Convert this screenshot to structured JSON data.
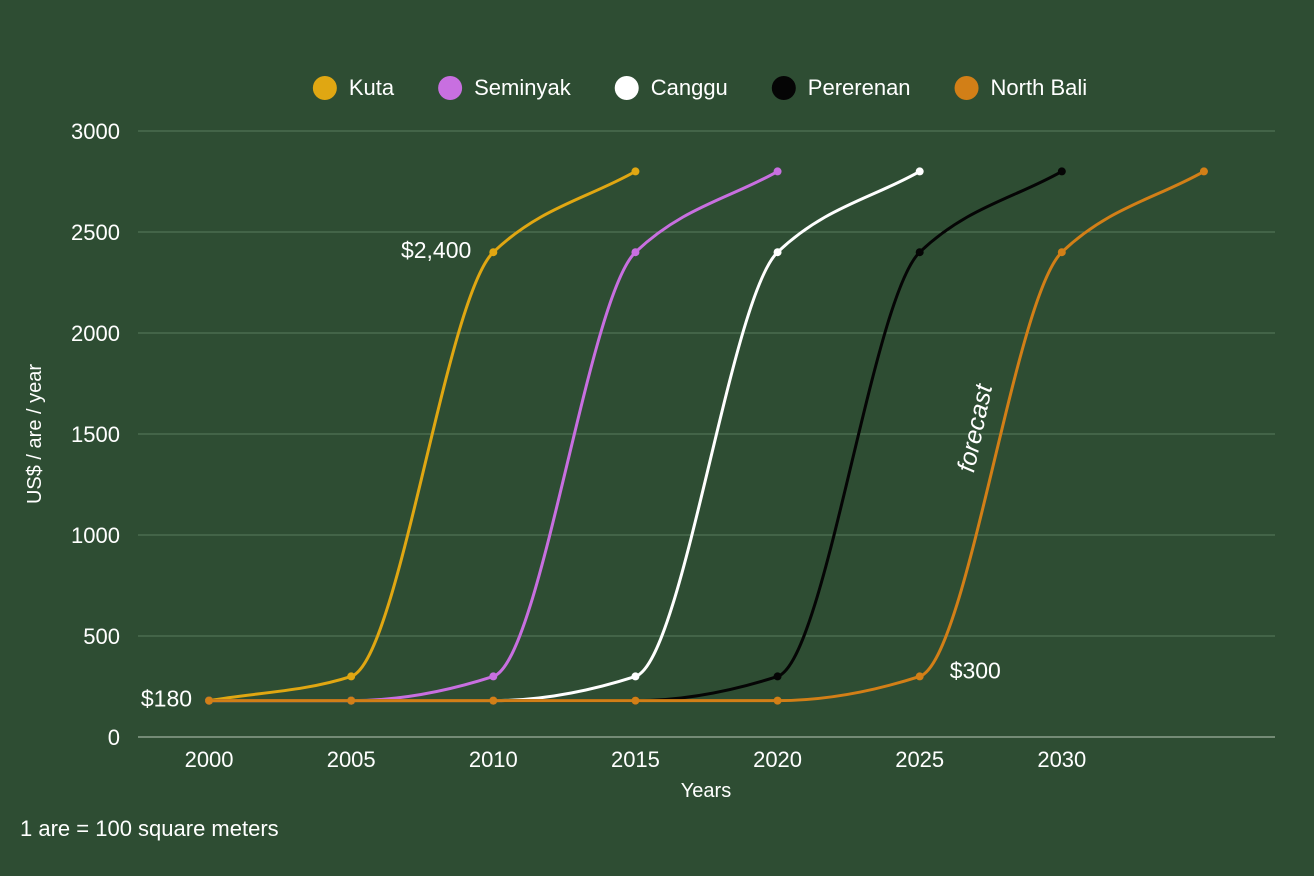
{
  "chart_data": {
    "type": "line",
    "title": "",
    "xlabel": "Years",
    "ylabel": "US$ / are / year",
    "xlim": [
      1997.5,
      2037.5
    ],
    "ylim": [
      0,
      3000
    ],
    "xticks": [
      2000,
      2005,
      2010,
      2015,
      2020,
      2025,
      2030
    ],
    "yticks": [
      0,
      500,
      1000,
      1500,
      2000,
      2500,
      3000
    ],
    "grid": true,
    "legend_position": "top-center",
    "series": [
      {
        "name": "Kuta",
        "color": "#e0a712",
        "x": [
          2000,
          2005,
          2010,
          2015
        ],
        "y": [
          180,
          300,
          2400,
          2800
        ]
      },
      {
        "name": "Seminyak",
        "color": "#c86fe0",
        "x": [
          2000,
          2005,
          2010,
          2015,
          2020
        ],
        "y": [
          180,
          180,
          300,
          2400,
          2800
        ]
      },
      {
        "name": "Canggu",
        "color": "#ffffff",
        "x": [
          2000,
          2005,
          2010,
          2015,
          2020,
          2025
        ],
        "y": [
          180,
          180,
          180,
          300,
          2400,
          2800
        ]
      },
      {
        "name": "Pererenan",
        "color": "#050505",
        "x": [
          2000,
          2005,
          2010,
          2015,
          2020,
          2025,
          2030
        ],
        "y": [
          180,
          180,
          180,
          180,
          300,
          2400,
          2800
        ]
      },
      {
        "name": "North Bali",
        "color": "#d27f17",
        "x": [
          2000,
          2005,
          2010,
          2015,
          2020,
          2025,
          2030,
          2035
        ],
        "y": [
          180,
          180,
          180,
          180,
          180,
          300,
          2400,
          2800
        ]
      }
    ],
    "annotations": [
      {
        "text": "$180",
        "x": 2000,
        "y": 180
      },
      {
        "text": "$2,400",
        "x": 2010,
        "y": 2400
      },
      {
        "text": "$300",
        "x": 2025,
        "y": 300
      },
      {
        "text": "forecast",
        "x": 2027.5,
        "y": 1500
      }
    ]
  },
  "footnote": "1 are = 100 square meters"
}
